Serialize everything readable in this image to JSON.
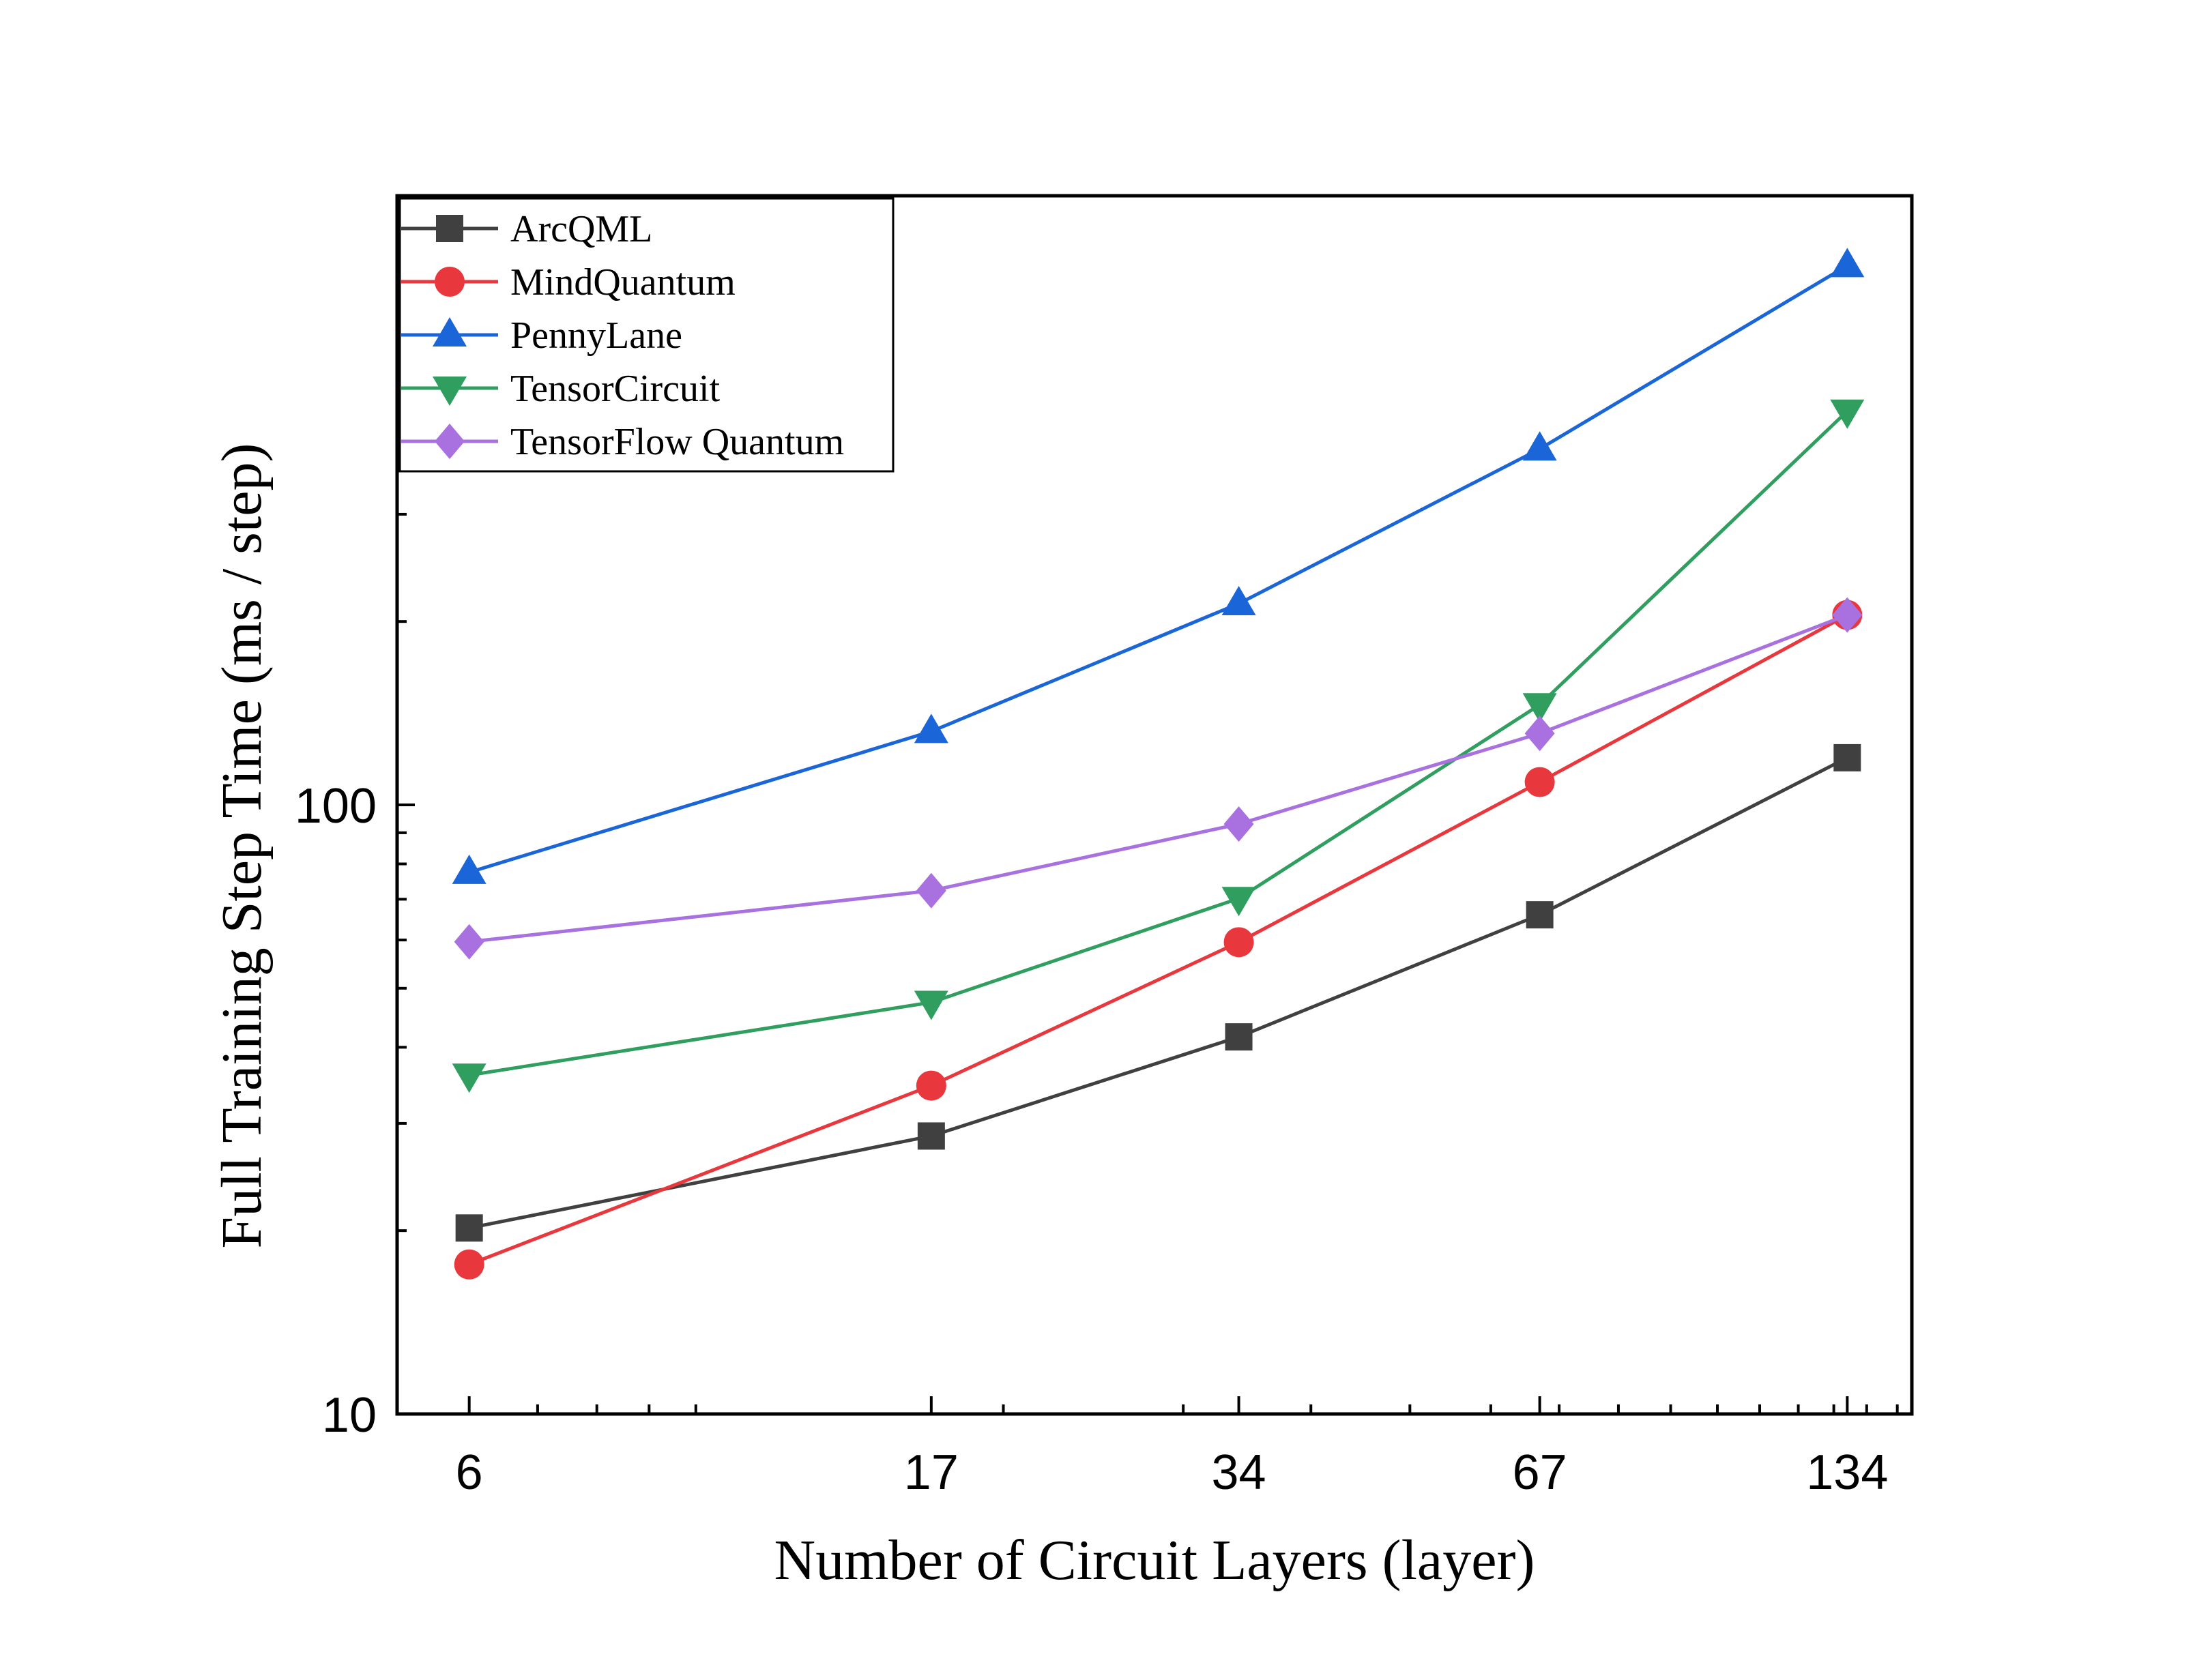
{
  "chart_data": {
    "type": "line",
    "xlabel": "Number of Circuit Layers (layer)",
    "ylabel": "Full Training Step Time (ms / step)",
    "x_scale": "log",
    "y_scale": "log",
    "x": [
      6,
      17,
      34,
      67,
      134
    ],
    "x_tick_labels": [
      "6",
      "17",
      "34",
      "67",
      "134"
    ],
    "xlim": [
      5.1,
      155
    ],
    "ylim": [
      10,
      1000
    ],
    "y_tick_labels": [
      "10",
      "100"
    ],
    "y_ticks": [
      10,
      100
    ],
    "grid": false,
    "legend_position": "top-left",
    "series": [
      {
        "name": "ArcQML",
        "color": "#404040",
        "marker": "square",
        "values": [
          20.2,
          28.6,
          41.6,
          66.0,
          119.5
        ]
      },
      {
        "name": "MindQuantum",
        "color": "#e8383d",
        "marker": "circle",
        "values": [
          17.6,
          34.6,
          59.5,
          109.0,
          205.0
        ]
      },
      {
        "name": "PennyLane",
        "color": "#1a66d8",
        "marker": "triangle-up",
        "values": [
          77.5,
          132.0,
          214.0,
          384.0,
          768.0
        ]
      },
      {
        "name": "TensorCircuit",
        "color": "#2f9e5f",
        "marker": "triangle-down",
        "values": [
          36.0,
          47.4,
          70.2,
          146.0,
          443.0
        ]
      },
      {
        "name": "TensorFlow Quantum",
        "color": "#a970e0",
        "marker": "diamond",
        "values": [
          59.6,
          72.3,
          93.0,
          131.0,
          205.0
        ]
      }
    ]
  }
}
